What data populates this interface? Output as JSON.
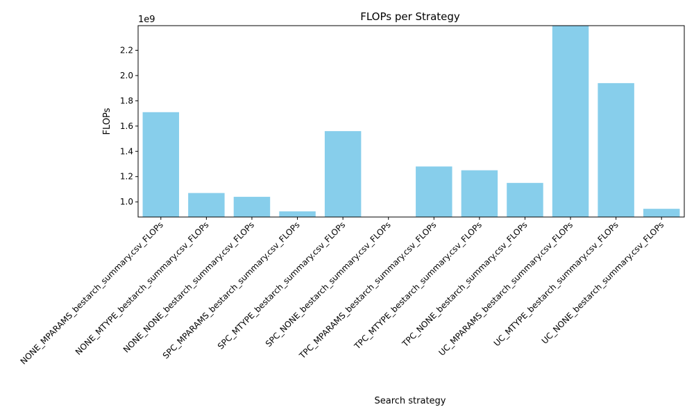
{
  "chart_data": {
    "type": "bar",
    "title": "FLOPs per Strategy",
    "xlabel": "Search strategy",
    "ylabel": "FLOPs",
    "y_offset_label": "1e9",
    "categories": [
      "NONE_MPARAMS_bestarch_summary.csv_FLOPs",
      "NONE_MTYPE_bestarch_summary.csv_FLOPs",
      "NONE_NONE_bestarch_summary.csv_FLOPs",
      "SPC_MPARAMS_bestarch_summary.csv_FLOPs",
      "SPC_MTYPE_bestarch_summary.csv_FLOPs",
      "SPC_NONE_bestarch_summary.csv_FLOPs",
      "TPC_MPARAMS_bestarch_summary.csv_FLOPs",
      "TPC_MTYPE_bestarch_summary.csv_FLOPs",
      "TPC_NONE_bestarch_summary.csv_FLOPs",
      "UC_MPARAMS_bestarch_summary.csv_FLOPs",
      "UC_MTYPE_bestarch_summary.csv_FLOPs",
      "UC_NONE_bestarch_summary.csv_FLOPs"
    ],
    "values": [
      1.71,
      1.07,
      1.04,
      0.925,
      1.56,
      0.88,
      1.28,
      1.25,
      1.15,
      2.4,
      1.94,
      0.945
    ],
    "ylim": [
      0.88,
      2.395
    ],
    "yticks": [
      1.0,
      1.2,
      1.4,
      1.6,
      1.8,
      2.0,
      2.2
    ],
    "ytick_labels": [
      "1.0",
      "1.2",
      "1.4",
      "1.6",
      "1.8",
      "2.0",
      "2.2"
    ],
    "bar_color": "#87ceeb",
    "grid": false,
    "legend": "none"
  }
}
